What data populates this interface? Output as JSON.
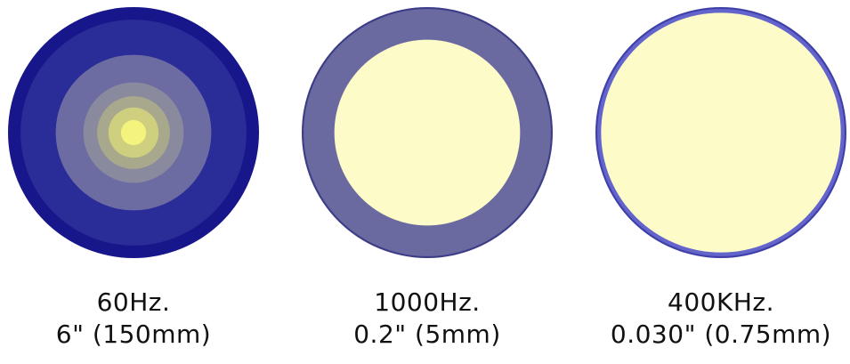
{
  "colors": {
    "conductor_current": "#fdfcc8",
    "deep_current": "#272995",
    "mid_current": "#6a6aa0",
    "thin_skin": "#5a5cc8"
  },
  "panels": [
    {
      "frequency": "60Hz.",
      "depth": "6\" (150mm)",
      "rings": [
        "#17168a",
        "#2a2c98",
        "#6c6ca3",
        "#8a8a9e",
        "#a8a88c",
        "#cfcf80",
        "#f4f37e"
      ],
      "ring_fractions": [
        1.0,
        0.9,
        0.62,
        0.4,
        0.29,
        0.2,
        0.1
      ]
    },
    {
      "frequency": "1000Hz.",
      "depth": "0.2\" (5mm)",
      "rings": [
        "#3c3d87",
        "#6a6aa0",
        "#fdfcc8"
      ],
      "ring_fractions": [
        1.0,
        0.985,
        0.74
      ]
    },
    {
      "frequency": "400KHz.",
      "depth": "0.030\" (0.75mm)",
      "rings": [
        "#3f3fa8",
        "#6465cc",
        "#fdfcc8"
      ],
      "ring_fractions": [
        1.0,
        0.985,
        0.955
      ]
    }
  ]
}
